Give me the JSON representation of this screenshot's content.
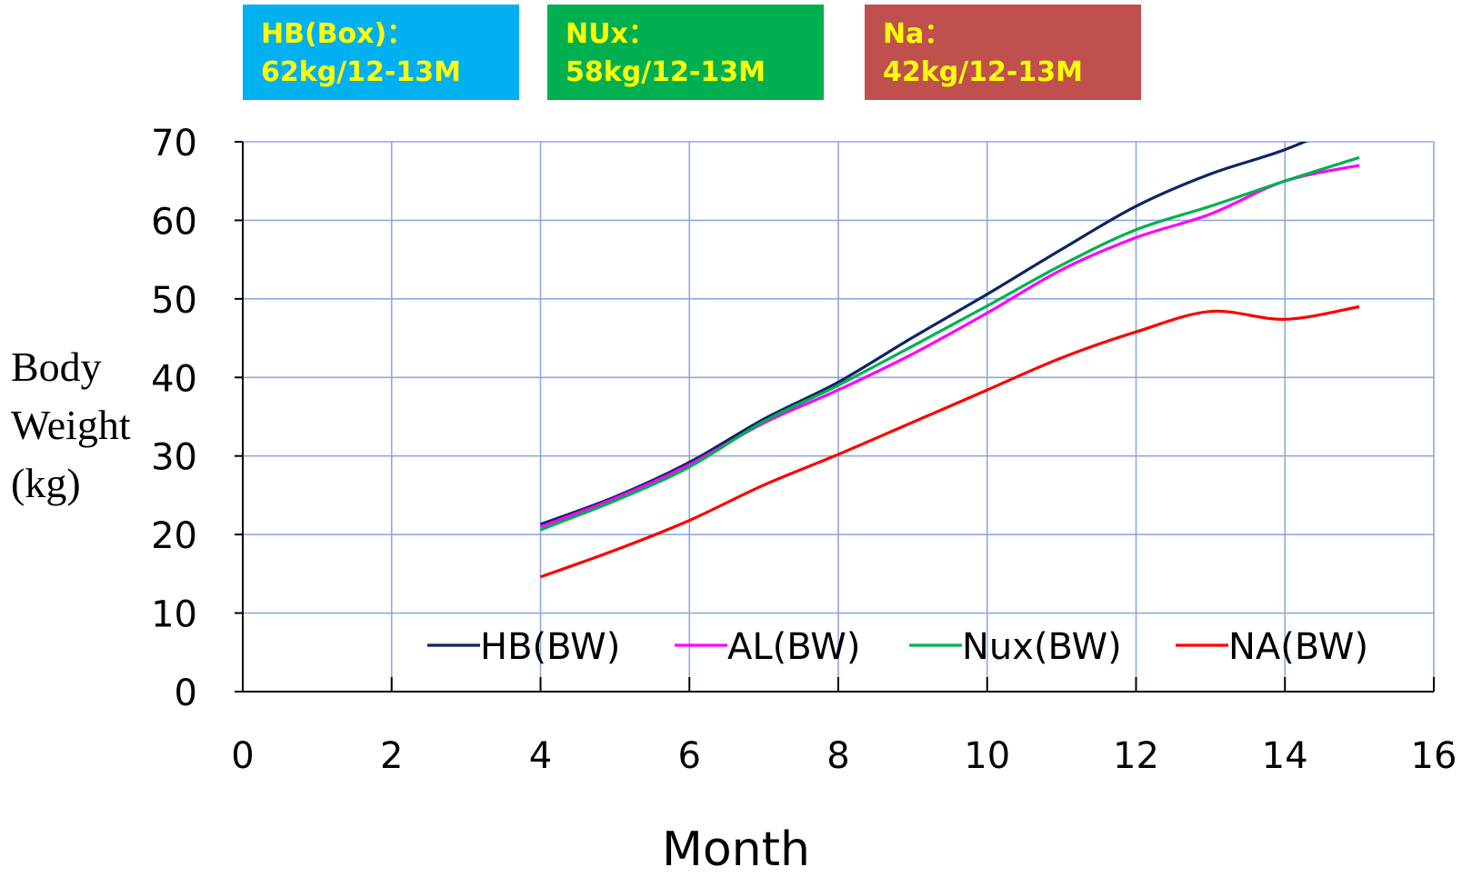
{
  "info_boxes": [
    {
      "line1": "HB(Box)：",
      "line2": "62kg/12-13M",
      "color": "#00b0f0"
    },
    {
      "line1": "NUx：",
      "line2": "58kg/12-13M",
      "color": "#00b050"
    },
    {
      "line1": "Na：",
      "line2": "42kg/12-13M",
      "color": "#c0504d"
    }
  ],
  "chart_data": {
    "type": "line",
    "title": "",
    "xlabel": "Month",
    "ylabel_lines": [
      "Body",
      "Weight",
      "(kg)"
    ],
    "xlim": [
      0,
      16
    ],
    "ylim": [
      0,
      70
    ],
    "x_ticks": [
      0,
      2,
      4,
      6,
      8,
      10,
      12,
      14,
      16
    ],
    "y_ticks": [
      0,
      10,
      20,
      30,
      40,
      50,
      60,
      70
    ],
    "grid": true,
    "legend_position": "bottom-inside",
    "x": [
      4,
      5,
      6,
      7,
      8,
      9,
      10,
      11,
      12,
      13,
      14,
      15
    ],
    "series": [
      {
        "name": "HB(BW)",
        "color": "#0d2466",
        "values": [
          21.3,
          24.8,
          29.2,
          34.7,
          39.4,
          45.1,
          50.6,
          56.3,
          61.8,
          65.9,
          69.0,
          73.0
        ]
      },
      {
        "name": "AL(BW)",
        "color": "#ff00ff",
        "values": [
          21.0,
          24.6,
          28.9,
          34.2,
          38.4,
          43.0,
          48.2,
          53.7,
          57.8,
          60.8,
          65.0,
          67.0
        ]
      },
      {
        "name": "Nux(BW)",
        "color": "#00b050",
        "values": [
          20.6,
          24.3,
          28.6,
          34.4,
          39.0,
          44.0,
          49.1,
          54.3,
          58.8,
          61.8,
          65.0,
          68.0
        ]
      },
      {
        "name": "NA(BW)",
        "color": "#ff0000",
        "values": [
          14.6,
          18.0,
          21.8,
          26.3,
          30.2,
          34.3,
          38.4,
          42.5,
          45.8,
          48.4,
          47.4,
          49.0
        ]
      }
    ]
  }
}
